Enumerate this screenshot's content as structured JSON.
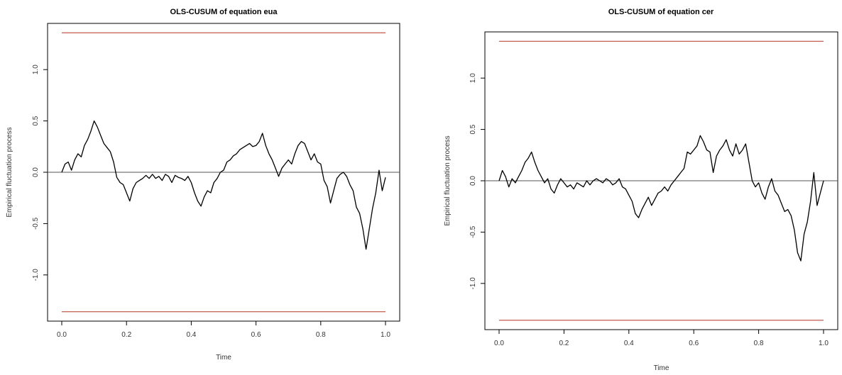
{
  "colors": {
    "background": "#ffffff",
    "series": "#000000",
    "boundary": "#c96a5e",
    "zero_line": "#555555"
  },
  "chart_data": [
    {
      "type": "line",
      "title": "OLS-CUSUM of equation eua",
      "xlabel": "Time",
      "ylabel": "Empirical fluctuation process",
      "xlim": [
        0.0,
        1.0
      ],
      "ylim": [
        -1.45,
        1.45
      ],
      "xticks": [
        "0.0",
        "0.2",
        "0.4",
        "0.6",
        "0.8",
        "1.0"
      ],
      "yticks": [
        "-1.0",
        "-0.5",
        "0.0",
        "0.5",
        "1.0"
      ],
      "boundaries": [
        1.358,
        -1.358
      ],
      "zero_line": 0.0,
      "grid": false,
      "series": [
        {
          "x": [
            0.0,
            0.01,
            0.02,
            0.03,
            0.04,
            0.05,
            0.06,
            0.07,
            0.08,
            0.09,
            0.1,
            0.11,
            0.12,
            0.13,
            0.14,
            0.15,
            0.16,
            0.17,
            0.18,
            0.19,
            0.2,
            0.21,
            0.22,
            0.23,
            0.24,
            0.25,
            0.26,
            0.27,
            0.28,
            0.29,
            0.3,
            0.31,
            0.32,
            0.33,
            0.34,
            0.35,
            0.36,
            0.37,
            0.38,
            0.39,
            0.4,
            0.41,
            0.42,
            0.43,
            0.44,
            0.45,
            0.46,
            0.47,
            0.48,
            0.49,
            0.5,
            0.51,
            0.52,
            0.53,
            0.54,
            0.55,
            0.56,
            0.57,
            0.58,
            0.59,
            0.6,
            0.61,
            0.62,
            0.63,
            0.64,
            0.65,
            0.66,
            0.67,
            0.68,
            0.69,
            0.7,
            0.71,
            0.72,
            0.73,
            0.74,
            0.75,
            0.76,
            0.77,
            0.78,
            0.79,
            0.8,
            0.81,
            0.82,
            0.83,
            0.84,
            0.85,
            0.86,
            0.87,
            0.88,
            0.89,
            0.9,
            0.91,
            0.92,
            0.93,
            0.94,
            0.95,
            0.96,
            0.97,
            0.98,
            0.99,
            1.0
          ],
          "y": [
            0.0,
            0.08,
            0.1,
            0.02,
            0.12,
            0.18,
            0.15,
            0.26,
            0.32,
            0.4,
            0.5,
            0.44,
            0.36,
            0.28,
            0.24,
            0.2,
            0.1,
            -0.05,
            -0.1,
            -0.12,
            -0.2,
            -0.28,
            -0.16,
            -0.1,
            -0.08,
            -0.06,
            -0.03,
            -0.06,
            -0.02,
            -0.06,
            -0.04,
            -0.08,
            -0.02,
            -0.04,
            -0.1,
            -0.03,
            -0.05,
            -0.06,
            -0.08,
            -0.04,
            -0.1,
            -0.2,
            -0.28,
            -0.33,
            -0.24,
            -0.18,
            -0.2,
            -0.1,
            -0.06,
            0.0,
            0.02,
            0.1,
            0.12,
            0.16,
            0.18,
            0.22,
            0.24,
            0.26,
            0.28,
            0.25,
            0.26,
            0.3,
            0.38,
            0.26,
            0.18,
            0.12,
            0.04,
            -0.04,
            0.04,
            0.08,
            0.12,
            0.08,
            0.18,
            0.26,
            0.3,
            0.28,
            0.2,
            0.12,
            0.18,
            0.1,
            0.08,
            -0.08,
            -0.14,
            -0.3,
            -0.18,
            -0.06,
            -0.02,
            0.0,
            -0.04,
            -0.12,
            -0.18,
            -0.34,
            -0.4,
            -0.55,
            -0.75,
            -0.55,
            -0.35,
            -0.2,
            0.02,
            -0.18,
            -0.05
          ]
        }
      ]
    },
    {
      "type": "line",
      "title": "OLS-CUSUM of equation cer",
      "xlabel": "Time",
      "ylabel": "Empirical fluctuation process",
      "xlim": [
        0.0,
        1.0
      ],
      "ylim": [
        -1.45,
        1.45
      ],
      "xticks": [
        "0.0",
        "0.2",
        "0.4",
        "0.6",
        "0.8",
        "1.0"
      ],
      "yticks": [
        "-1.0",
        "-0.5",
        "0.0",
        "0.5",
        "1.0"
      ],
      "boundaries": [
        1.358,
        -1.358
      ],
      "zero_line": 0.0,
      "grid": false,
      "series": [
        {
          "x": [
            0.0,
            0.01,
            0.02,
            0.03,
            0.04,
            0.05,
            0.06,
            0.07,
            0.08,
            0.09,
            0.1,
            0.11,
            0.12,
            0.13,
            0.14,
            0.15,
            0.16,
            0.17,
            0.18,
            0.19,
            0.2,
            0.21,
            0.22,
            0.23,
            0.24,
            0.25,
            0.26,
            0.27,
            0.28,
            0.29,
            0.3,
            0.31,
            0.32,
            0.33,
            0.34,
            0.35,
            0.36,
            0.37,
            0.38,
            0.39,
            0.4,
            0.41,
            0.42,
            0.43,
            0.44,
            0.45,
            0.46,
            0.47,
            0.48,
            0.49,
            0.5,
            0.51,
            0.52,
            0.53,
            0.54,
            0.55,
            0.56,
            0.57,
            0.58,
            0.59,
            0.6,
            0.61,
            0.62,
            0.63,
            0.64,
            0.65,
            0.66,
            0.67,
            0.68,
            0.69,
            0.7,
            0.71,
            0.72,
            0.73,
            0.74,
            0.75,
            0.76,
            0.77,
            0.78,
            0.79,
            0.8,
            0.81,
            0.82,
            0.83,
            0.84,
            0.85,
            0.86,
            0.87,
            0.88,
            0.89,
            0.9,
            0.91,
            0.92,
            0.93,
            0.94,
            0.95,
            0.96,
            0.97,
            0.98,
            0.99,
            1.0
          ],
          "y": [
            0.0,
            0.1,
            0.04,
            -0.06,
            0.02,
            -0.02,
            0.04,
            0.1,
            0.18,
            0.22,
            0.28,
            0.18,
            0.1,
            0.04,
            -0.02,
            0.02,
            -0.08,
            -0.12,
            -0.04,
            0.02,
            -0.02,
            -0.06,
            -0.04,
            -0.08,
            -0.02,
            -0.04,
            -0.06,
            0.0,
            -0.04,
            0.0,
            0.02,
            0.0,
            -0.02,
            0.02,
            0.0,
            -0.04,
            -0.02,
            0.02,
            -0.06,
            -0.08,
            -0.14,
            -0.2,
            -0.32,
            -0.36,
            -0.28,
            -0.22,
            -0.16,
            -0.24,
            -0.18,
            -0.12,
            -0.1,
            -0.06,
            -0.1,
            -0.04,
            0.0,
            0.04,
            0.08,
            0.12,
            0.28,
            0.26,
            0.3,
            0.34,
            0.44,
            0.38,
            0.3,
            0.28,
            0.08,
            0.24,
            0.3,
            0.34,
            0.4,
            0.3,
            0.24,
            0.36,
            0.26,
            0.3,
            0.36,
            0.18,
            0.0,
            -0.06,
            -0.02,
            -0.12,
            -0.18,
            -0.06,
            0.02,
            -0.1,
            -0.14,
            -0.22,
            -0.3,
            -0.28,
            -0.34,
            -0.48,
            -0.7,
            -0.78,
            -0.52,
            -0.4,
            -0.2,
            0.08,
            -0.24,
            -0.12,
            0.0
          ]
        }
      ]
    }
  ]
}
